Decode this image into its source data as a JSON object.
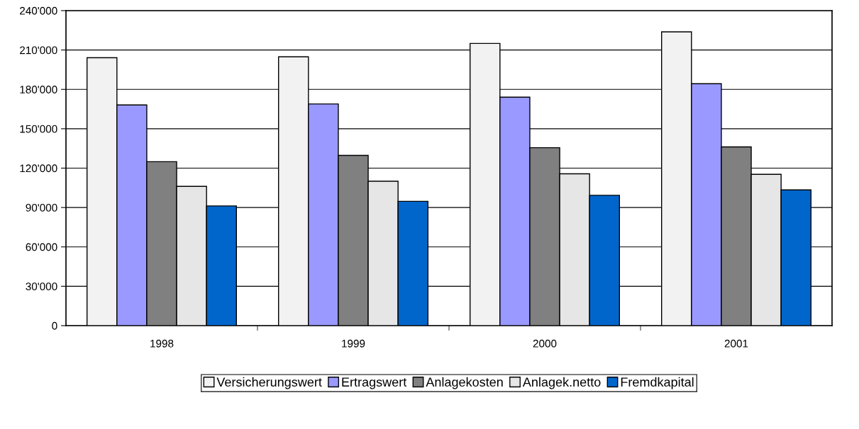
{
  "chart_data": {
    "type": "bar",
    "categories": [
      "1998",
      "1999",
      "2000",
      "2001"
    ],
    "series": [
      {
        "name": "Versicherungswert",
        "color": "#f2f2f2",
        "values": [
          204100,
          204800,
          215000,
          223800
        ]
      },
      {
        "name": "Ertragswert",
        "color": "#9999ff",
        "values": [
          168100,
          168900,
          174100,
          184300
        ]
      },
      {
        "name": "Anlagekosten",
        "color": "#808080",
        "values": [
          124900,
          129700,
          135600,
          136200
        ]
      },
      {
        "name": "Anlagek.netto",
        "color": "#e6e6e6",
        "values": [
          106100,
          110000,
          115700,
          115300
        ]
      },
      {
        "name": "Fremdkapital",
        "color": "#0066cc",
        "values": [
          91200,
          94700,
          99300,
          103400
        ]
      }
    ],
    "ylim": [
      0,
      240000
    ],
    "yticks": [
      0,
      {
        "value": 30000,
        "label": "30'000"
      },
      {
        "value": 60000,
        "label": "60'000"
      },
      {
        "value": 90000,
        "label": "90'000"
      },
      {
        "value": 120000,
        "label": "120'000"
      },
      {
        "value": 150000,
        "label": "150'000"
      },
      {
        "value": 180000,
        "label": "180'000"
      },
      {
        "value": 210000,
        "label": "210'000"
      },
      {
        "value": 240000,
        "label": "240'000"
      }
    ],
    "grid": "y",
    "legend": "bottom"
  }
}
